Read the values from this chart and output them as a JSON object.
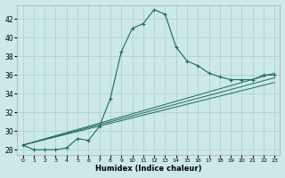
{
  "xlabel": "Humidex (Indice chaleur)",
  "bg_color": "#cce8e8",
  "line_color": "#1a6b5a",
  "grid_color": "#aacece",
  "ylim": [
    27.5,
    43.5
  ],
  "xlim": [
    -0.5,
    23.5
  ],
  "yticks": [
    28,
    30,
    32,
    34,
    36,
    38,
    40,
    42
  ],
  "xtick_labels": [
    "0",
    "1",
    "2",
    "3",
    "4",
    "5",
    "6",
    "7",
    "8",
    "9",
    "10",
    "11",
    "12",
    "13",
    "14",
    "15",
    "16",
    "17",
    "18",
    "19",
    "20",
    "21",
    "22",
    "23"
  ],
  "series1_x": [
    0,
    1,
    2,
    3,
    4,
    5,
    6,
    7,
    8,
    9,
    10,
    11,
    12,
    13,
    14,
    15,
    16,
    17,
    18,
    19,
    20,
    21,
    22,
    23
  ],
  "series1_y": [
    28.5,
    28.0,
    28.0,
    28.0,
    28.2,
    29.2,
    29.0,
    30.5,
    33.5,
    38.5,
    41.0,
    41.5,
    43.0,
    42.5,
    39.0,
    37.5,
    37.0,
    36.2,
    35.8,
    35.5,
    35.5,
    35.5,
    36.0,
    36.0
  ],
  "series2_x": [
    0,
    23
  ],
  "series2_y": [
    28.5,
    36.2
  ],
  "series3_x": [
    0,
    23
  ],
  "series3_y": [
    28.5,
    35.7
  ],
  "series4_x": [
    0,
    23
  ],
  "series4_y": [
    28.5,
    35.2
  ]
}
